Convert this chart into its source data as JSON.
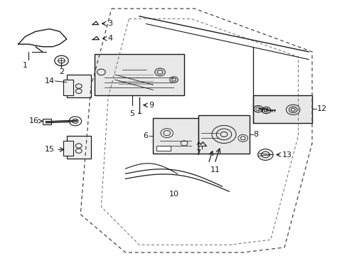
{
  "bg_color": "#ffffff",
  "line_color": "#1a1a1a",
  "dashed_color": "#444444",
  "box_color": "#e8e8e8",
  "fig_width": 4.89,
  "fig_height": 3.6,
  "door_outer": {
    "x": [
      0.3,
      0.55,
      0.88,
      0.88,
      0.8,
      0.68,
      0.35,
      0.22,
      0.24,
      0.3
    ],
    "y": [
      0.97,
      0.97,
      0.8,
      0.45,
      0.04,
      0.02,
      0.02,
      0.18,
      0.65,
      0.97
    ]
  },
  "door_inner": {
    "x": [
      0.36,
      0.54,
      0.83,
      0.83,
      0.75,
      0.64,
      0.38,
      0.28,
      0.3,
      0.36
    ],
    "y": [
      0.93,
      0.93,
      0.78,
      0.48,
      0.07,
      0.05,
      0.05,
      0.2,
      0.62,
      0.93
    ]
  },
  "window_lines": {
    "x": [
      0.38,
      0.56,
      0.83,
      0.78
    ],
    "y": [
      0.96,
      0.97,
      0.79,
      0.55
    ]
  },
  "window_lines2": {
    "x": [
      0.42,
      0.58,
      0.84,
      0.79
    ],
    "y": [
      0.93,
      0.94,
      0.77,
      0.53
    ]
  }
}
